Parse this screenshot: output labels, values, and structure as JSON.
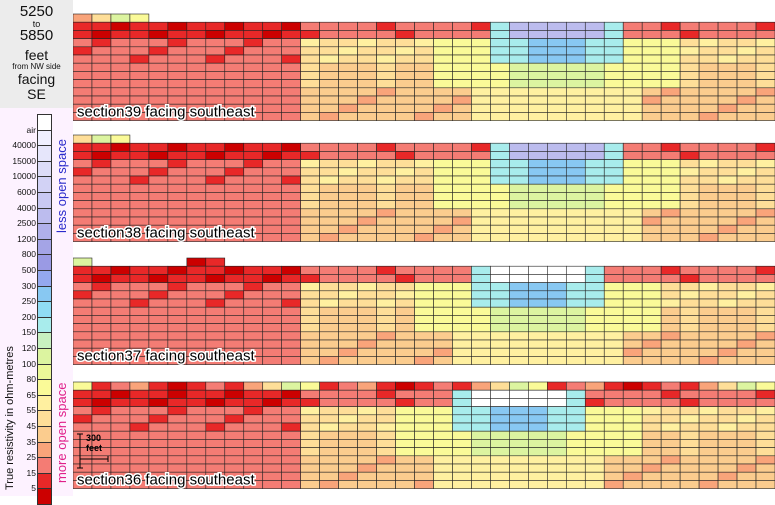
{
  "header": {
    "range_start": "5250",
    "range_to": "to",
    "range_end": "5850",
    "unit": "feet",
    "from_note": "from NW side",
    "facing_word": "facing",
    "facing_dir": "SE"
  },
  "legend": {
    "axis_label": "True resistivity in ohm-metres",
    "less_open": "less open space",
    "more_open": "more open space",
    "entries": [
      {
        "label": "air",
        "color": "#ffffff"
      },
      {
        "label": "40000",
        "color": "#f0f0ff"
      },
      {
        "label": "15000",
        "color": "#e6e6fb"
      },
      {
        "label": "10000",
        "color": "#dcdcf7"
      },
      {
        "label": "6000",
        "color": "#d2d2f5"
      },
      {
        "label": "4000",
        "color": "#c8c8f2"
      },
      {
        "label": "2500",
        "color": "#bcbcee"
      },
      {
        "label": "1200",
        "color": "#b0b0ea"
      },
      {
        "label": "800",
        "color": "#a4a4e6"
      },
      {
        "label": "500",
        "color": "#9a9ae4"
      },
      {
        "label": "300",
        "color": "#94a8ee"
      },
      {
        "label": "250",
        "color": "#88c8f2"
      },
      {
        "label": "200",
        "color": "#90dcf4"
      },
      {
        "label": "150",
        "color": "#a8ecec"
      },
      {
        "label": "120",
        "color": "#c8f0c0"
      },
      {
        "label": "100",
        "color": "#dcf4a0"
      },
      {
        "label": "80",
        "color": "#ecf898"
      },
      {
        "label": "65",
        "color": "#fafa98"
      },
      {
        "label": "55",
        "color": "#fff0a0"
      },
      {
        "label": "45",
        "color": "#fede98"
      },
      {
        "label": "35",
        "color": "#fbcc8e"
      },
      {
        "label": "25",
        "color": "#f9a47a"
      },
      {
        "label": "15",
        "color": "#f47c74"
      },
      {
        "label": "5",
        "color": "#e82828"
      },
      {
        "label": "",
        "color": "#cc0000"
      }
    ]
  },
  "scale_bar": {
    "line1": "300",
    "line2": "feet"
  },
  "chart_data": {
    "type": "heatmap",
    "title": "5250 to 5850 feet from NW side facing SE",
    "colorbar_label": "True resistivity in ohm-metres",
    "colorbar_ticks": [
      "air",
      "40000",
      "15000",
      "10000",
      "6000",
      "4000",
      "2500",
      "1200",
      "800",
      "500",
      "300",
      "250",
      "200",
      "150",
      "120",
      "100",
      "80",
      "65",
      "55",
      "45",
      "35",
      "25",
      "15",
      "5"
    ],
    "sections": [
      {
        "name": "section39 facing southeast",
        "columns": 37,
        "surface_rows": [
          0,
          0,
          0,
          0,
          1,
          1,
          1,
          1,
          1,
          1,
          1,
          1,
          1,
          1,
          1,
          1,
          1,
          1,
          1,
          1,
          1,
          1,
          1,
          1,
          1,
          1,
          1,
          1,
          1,
          1,
          1,
          1,
          1,
          1,
          1,
          1,
          1
        ],
        "feature_note": "low-resistivity (red) upper band, high-resistivity (blue/white) anomaly near column 24-26"
      },
      {
        "name": "section38 facing southeast",
        "columns": 37,
        "surface_rows": [
          0,
          0,
          0,
          1,
          1,
          1,
          1,
          1,
          1,
          1,
          1,
          1,
          1,
          1,
          1,
          1,
          1,
          1,
          1,
          1,
          1,
          1,
          1,
          1,
          1,
          1,
          1,
          1,
          1,
          1,
          1,
          1,
          1,
          1,
          1,
          1,
          1
        ],
        "feature_note": "blue/white high-resistivity zone near columns 22-26"
      },
      {
        "name": "section37 facing southeast",
        "columns": 37,
        "surface_rows": [
          0,
          1,
          1,
          1,
          1,
          1,
          0,
          0,
          1,
          1,
          1,
          1,
          1,
          1,
          1,
          1,
          1,
          1,
          1,
          1,
          1,
          1,
          1,
          1,
          1,
          1,
          1,
          1,
          1,
          1,
          1,
          1,
          1,
          1,
          1,
          1,
          1
        ],
        "feature_note": "white/blue high-resistivity zone near columns 22-25"
      },
      {
        "name": "section36 facing southeast",
        "columns": 37,
        "surface_rows": [
          0,
          0,
          0,
          0,
          0,
          0,
          0,
          0,
          0,
          0,
          0,
          0,
          0,
          0,
          0,
          0,
          0,
          0,
          0,
          0,
          0,
          0,
          0,
          0,
          0,
          0,
          0,
          0,
          0,
          0,
          0,
          0,
          0,
          0,
          0,
          0,
          0
        ],
        "feature_note": "white/blue high-resistivity zone near columns 21-26"
      }
    ]
  }
}
